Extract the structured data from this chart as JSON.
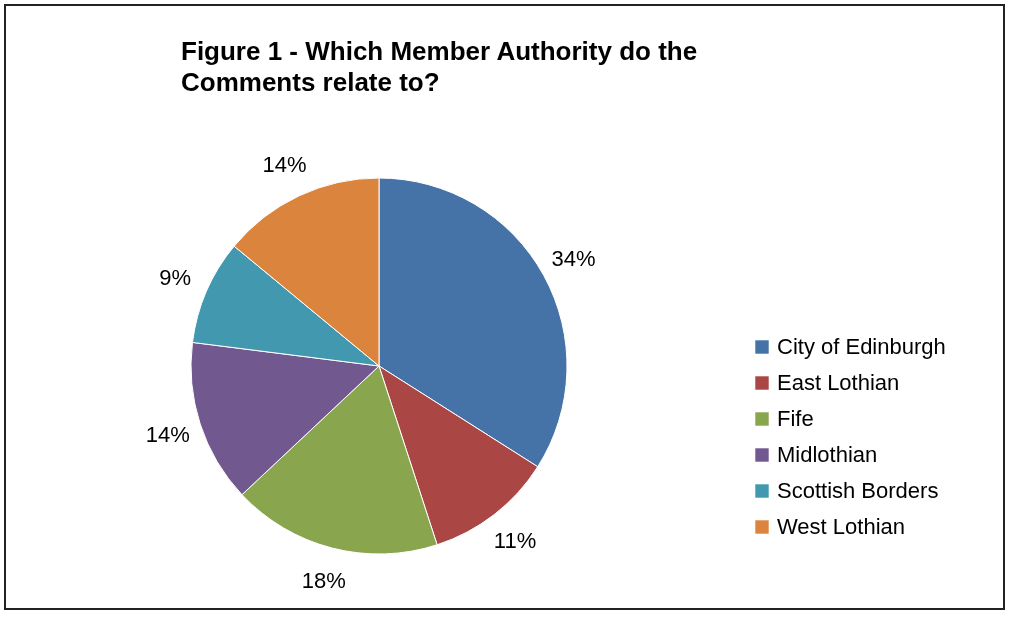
{
  "chart_data": {
    "type": "pie",
    "title": "Figure 1 - Which Member Authority do the\nComments relate to?",
    "categories": [
      "City of Edinburgh",
      "East Lothian",
      "Fife",
      "Midlothian",
      "Scottish Borders",
      "West Lothian"
    ],
    "values": [
      34,
      11,
      18,
      14,
      9,
      14
    ],
    "colors": [
      "#4572a7",
      "#aa4643",
      "#89a54e",
      "#71588f",
      "#4198af",
      "#db843d"
    ],
    "value_labels": [
      "34%",
      "11%",
      "18%",
      "14%",
      "9%",
      "14%"
    ],
    "legend": "right"
  }
}
